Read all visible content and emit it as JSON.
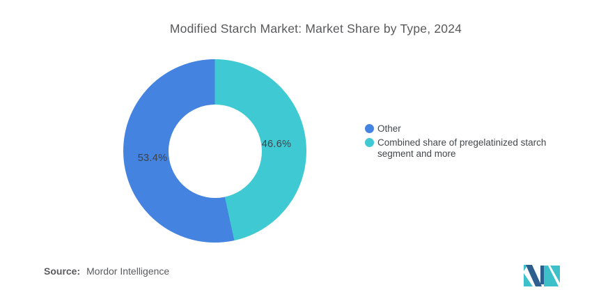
{
  "title": "Modified Starch Market: Market Share by Type, 2024",
  "chart_data": {
    "type": "pie",
    "subtype": "donut",
    "title": "Modified Starch Market: Market Share by Type, 2024",
    "start_angle_deg": 0,
    "direction": "clockwise",
    "donut_hole_ratio": 0.51,
    "legend_position": "right",
    "slices": [
      {
        "label": "Combined share of pregelatinized starch segment and more",
        "value": 46.6,
        "display": "46.6%",
        "color": "#3FC9D2"
      },
      {
        "label": "Other",
        "value": 53.4,
        "display": "53.4%",
        "color": "#4483E0"
      }
    ]
  },
  "legend": {
    "items": [
      {
        "label": "Other",
        "color": "#4483E0"
      },
      {
        "label": "Combined share of pregelatinized starch segment and more",
        "color": "#3FC9D2"
      }
    ]
  },
  "source": {
    "prefix": "Source:",
    "text": "Mordor Intelligence"
  },
  "logo": {
    "name": "mordor-intelligence-logo",
    "navy": "#2C5F8D",
    "teal": "#3EC0CA"
  }
}
